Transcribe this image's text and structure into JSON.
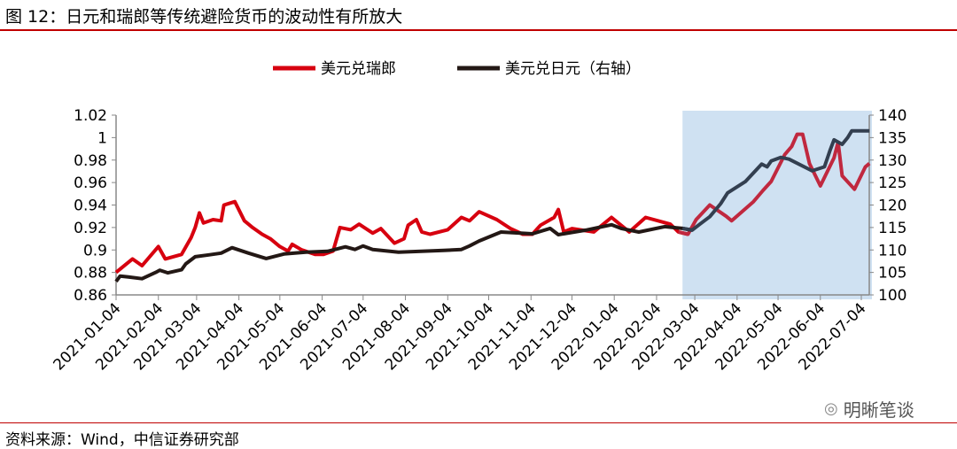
{
  "title": "图 12：日元和瑞郎等传统避险货币的波动性有所放大",
  "source": "资料来源：Wind，中信证券研究部",
  "watermark": "明晰笔谈",
  "chart_data": {
    "type": "line",
    "x_unit": "days since 2021-01-04",
    "x_range": [
      0,
      552
    ],
    "x_tick_labels": [
      "2021-01-04",
      "2021-02-04",
      "2021-03-04",
      "2021-04-04",
      "2021-05-04",
      "2021-06-04",
      "2021-07-04",
      "2021-08-04",
      "2021-09-04",
      "2021-10-04",
      "2021-11-04",
      "2021-12-04",
      "2022-01-04",
      "2022-02-04",
      "2022-03-04",
      "2022-04-04",
      "2022-05-04",
      "2022-06-04",
      "2022-07-04"
    ],
    "x_tick_days": [
      0,
      31,
      59,
      90,
      120,
      151,
      181,
      212,
      243,
      273,
      304,
      334,
      365,
      396,
      424,
      455,
      485,
      516,
      546
    ],
    "left_axis": {
      "range": [
        0.86,
        1.02
      ],
      "ticks": [
        "0.86",
        "0.88",
        "0.9",
        "0.92",
        "0.94",
        "0.96",
        "0.98",
        "1",
        "1.02"
      ]
    },
    "right_axis": {
      "range": [
        100,
        140
      ],
      "ticks": [
        "100",
        "105",
        "110",
        "115",
        "120",
        "125",
        "130",
        "135",
        "140"
      ]
    },
    "shaded_region_days": [
      415,
      552
    ],
    "colors": {
      "usdchf": "#d7000f",
      "usdjpy": "#231815",
      "shade": "#cfe1f2",
      "usdjpy_shaded": "#333f50",
      "usdchf_shaded": "#c0283f"
    },
    "series": [
      {
        "name": "美元兑瑞郎",
        "axis": "left",
        "points": [
          [
            0,
            0.88
          ],
          [
            9,
            0.889
          ],
          [
            12,
            0.892
          ],
          [
            19,
            0.886
          ],
          [
            31,
            0.903
          ],
          [
            36,
            0.892
          ],
          [
            48,
            0.896
          ],
          [
            55,
            0.911
          ],
          [
            58,
            0.92
          ],
          [
            61,
            0.933
          ],
          [
            64,
            0.924
          ],
          [
            71,
            0.927
          ],
          [
            77,
            0.926
          ],
          [
            79,
            0.94
          ],
          [
            87,
            0.943
          ],
          [
            94,
            0.926
          ],
          [
            100,
            0.92
          ],
          [
            107,
            0.914
          ],
          [
            113,
            0.91
          ],
          [
            120,
            0.903
          ],
          [
            126,
            0.899
          ],
          [
            129,
            0.905
          ],
          [
            136,
            0.9
          ],
          [
            146,
            0.896
          ],
          [
            152,
            0.896
          ],
          [
            159,
            0.899
          ],
          [
            164,
            0.92
          ],
          [
            172,
            0.918
          ],
          [
            178,
            0.923
          ],
          [
            188,
            0.915
          ],
          [
            194,
            0.919
          ],
          [
            204,
            0.906
          ],
          [
            211,
            0.91
          ],
          [
            214,
            0.922
          ],
          [
            220,
            0.927
          ],
          [
            224,
            0.916
          ],
          [
            230,
            0.914
          ],
          [
            243,
            0.918
          ],
          [
            253,
            0.929
          ],
          [
            259,
            0.926
          ],
          [
            266,
            0.934
          ],
          [
            279,
            0.927
          ],
          [
            289,
            0.919
          ],
          [
            298,
            0.914
          ],
          [
            305,
            0.914
          ],
          [
            311,
            0.922
          ],
          [
            321,
            0.929
          ],
          [
            324,
            0.936
          ],
          [
            328,
            0.916
          ],
          [
            334,
            0.919
          ],
          [
            350,
            0.916
          ],
          [
            363,
            0.929
          ],
          [
            376,
            0.916
          ],
          [
            388,
            0.929
          ],
          [
            406,
            0.923
          ],
          [
            412,
            0.916
          ],
          [
            419,
            0.914
          ],
          [
            425,
            0.927
          ],
          [
            435,
            0.94
          ],
          [
            447,
            0.93
          ],
          [
            451,
            0.926
          ],
          [
            467,
            0.943
          ],
          [
            474,
            0.953
          ],
          [
            480,
            0.961
          ],
          [
            490,
            0.985
          ],
          [
            495,
            0.992
          ],
          [
            499,
            1.003
          ],
          [
            503,
            1.003
          ],
          [
            508,
            0.977
          ],
          [
            516,
            0.957
          ],
          [
            526,
            0.982
          ],
          [
            529,
            0.996
          ],
          [
            532,
            0.966
          ],
          [
            541,
            0.954
          ],
          [
            549,
            0.974
          ],
          [
            552,
            0.977
          ]
        ]
      },
      {
        "name": "美元兑日元（右轴）",
        "axis": "right",
        "points": [
          [
            0,
            103.0
          ],
          [
            3,
            104.2
          ],
          [
            9,
            104.0
          ],
          [
            19,
            103.6
          ],
          [
            29,
            105.0
          ],
          [
            32,
            105.5
          ],
          [
            38,
            104.9
          ],
          [
            48,
            105.6
          ],
          [
            51,
            106.9
          ],
          [
            58,
            108.5
          ],
          [
            68,
            108.9
          ],
          [
            77,
            109.3
          ],
          [
            85,
            110.5
          ],
          [
            97,
            109.3
          ],
          [
            110,
            108.1
          ],
          [
            123,
            109.1
          ],
          [
            139,
            109.5
          ],
          [
            155,
            109.7
          ],
          [
            168,
            110.7
          ],
          [
            175,
            110.1
          ],
          [
            181,
            110.9
          ],
          [
            188,
            110.1
          ],
          [
            207,
            109.5
          ],
          [
            240,
            109.9
          ],
          [
            253,
            110.1
          ],
          [
            259,
            110.9
          ],
          [
            266,
            112.0
          ],
          [
            282,
            114.0
          ],
          [
            305,
            113.6
          ],
          [
            318,
            114.8
          ],
          [
            324,
            113.4
          ],
          [
            344,
            114.4
          ],
          [
            363,
            115.6
          ],
          [
            370,
            114.8
          ],
          [
            383,
            114.0
          ],
          [
            402,
            115.2
          ],
          [
            415,
            114.8
          ],
          [
            422,
            114.4
          ],
          [
            428,
            115.8
          ],
          [
            435,
            117.4
          ],
          [
            443,
            120.3
          ],
          [
            448,
            122.7
          ],
          [
            461,
            125.2
          ],
          [
            473,
            129.1
          ],
          [
            477,
            128.5
          ],
          [
            480,
            129.8
          ],
          [
            487,
            130.6
          ],
          [
            493,
            130.2
          ],
          [
            510,
            127.6
          ],
          [
            519,
            128.5
          ],
          [
            523,
            132.1
          ],
          [
            526,
            134.5
          ],
          [
            532,
            133.5
          ],
          [
            536,
            135.0
          ],
          [
            539,
            136.5
          ],
          [
            552,
            136.5
          ]
        ]
      }
    ]
  }
}
